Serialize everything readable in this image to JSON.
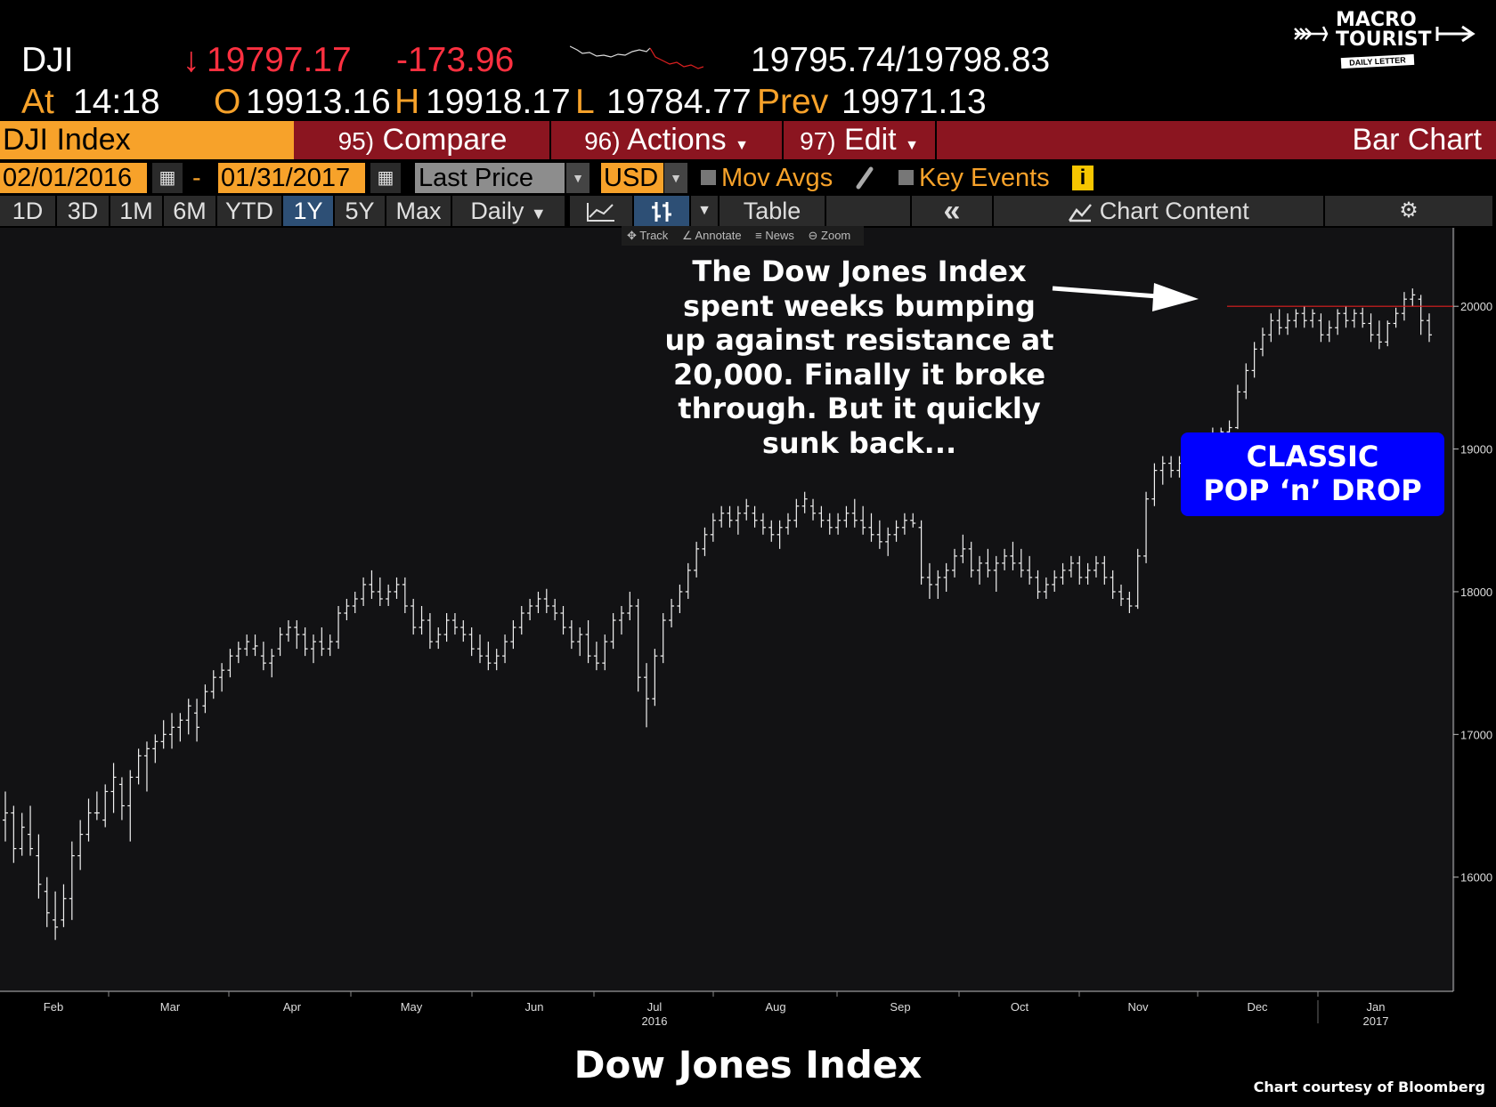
{
  "ticker": {
    "symbol": "DJI",
    "arrow": "↓",
    "last": "19797.17",
    "change": "-173.96",
    "bid_ask": "19795.74/19798.83",
    "at_label": "At",
    "time": "14:18",
    "open_label": "O",
    "open": "19913.16",
    "high_label": "H",
    "high": "19918.17",
    "low_label": "L",
    "low": "19784.77",
    "prev_label": "Prev",
    "prev": "19971.13"
  },
  "logo": {
    "line1": "Macro",
    "line2": "Tourist",
    "line3": "Daily Letter"
  },
  "menu": {
    "security": "DJI Index",
    "compare_num": "95)",
    "compare": "Compare",
    "actions_num": "96)",
    "actions": "Actions",
    "edit_num": "97)",
    "edit": "Edit",
    "chart_type": "Bar Chart"
  },
  "options": {
    "start_date": "02/01/2016",
    "date_sep": "-",
    "end_date": "01/31/2017",
    "field": "Last Price",
    "currency": "USD",
    "mov_avgs": "Mov Avgs",
    "key_events": "Key Events",
    "info": "i"
  },
  "timeframes": [
    "1D",
    "3D",
    "1M",
    "6M",
    "YTD",
    "1Y",
    "5Y",
    "Max"
  ],
  "active_timeframe": "1Y",
  "toolbar": {
    "periodicity": "Daily",
    "table": "Table",
    "collapse": "«",
    "chart_content": "Chart Content"
  },
  "mini_toolbar": {
    "track": "Track",
    "annotate": "Annotate",
    "news": "News",
    "zoom": "Zoom"
  },
  "annotations": {
    "callout": [
      "The Dow Jones Index",
      "spent weeks bumping",
      "up against resistance at",
      "20,000.  Finally it broke",
      "through.  But it quickly",
      "sunk back..."
    ],
    "badge": [
      "CLASSIC",
      "POP ‘n’ DROP"
    ]
  },
  "footer": {
    "title": "Dow Jones Index",
    "credit": "Chart courtesy of Bloomberg"
  },
  "colors": {
    "accent_orange": "#f7a22a",
    "down_red": "#ff3040",
    "menu_red": "#8b1520",
    "badge_blue": "#0000ff",
    "resistance_line": "#e02020"
  },
  "chart_data": {
    "type": "bar",
    "title": "",
    "xlabel": "",
    "ylabel": "",
    "ylim": [
      15200,
      20550
    ],
    "y_ticks": [
      16000,
      17000,
      18000,
      19000,
      20000
    ],
    "x_tick_labels": [
      "Feb",
      "Mar",
      "Apr",
      "May",
      "Jun",
      "Jul",
      "Aug",
      "Sep",
      "Oct",
      "Nov",
      "Dec",
      "Jan"
    ],
    "x_year_labels": [
      {
        "month": "Jul",
        "year": "2016"
      },
      {
        "month": "Jan",
        "year": "2017"
      }
    ],
    "resistance_level": 20000,
    "grid": false,
    "series": [
      {
        "values": [
          [
            16400,
            16600,
            16250,
            16450
          ],
          [
            16450,
            16500,
            16100,
            16200
          ],
          [
            16200,
            16450,
            16150,
            16350
          ],
          [
            16300,
            16500,
            16150,
            16200
          ],
          [
            16150,
            16300,
            15850,
            15950
          ],
          [
            15900,
            16000,
            15650,
            15750
          ],
          [
            15700,
            15900,
            15560,
            15650
          ],
          [
            15700,
            15950,
            15650,
            15850
          ],
          [
            15850,
            16250,
            15700,
            16150
          ],
          [
            16150,
            16400,
            16050,
            16300
          ],
          [
            16300,
            16550,
            16250,
            16450
          ],
          [
            16450,
            16600,
            16400,
            16450
          ],
          [
            16400,
            16650,
            16350,
            16600
          ],
          [
            16600,
            16800,
            16450,
            16700
          ],
          [
            16650,
            16700,
            16400,
            16500
          ],
          [
            16500,
            16750,
            16250,
            16700
          ],
          [
            16700,
            16900,
            16650,
            16850
          ],
          [
            16850,
            16950,
            16600,
            16900
          ],
          [
            16900,
            17000,
            16800,
            16950
          ],
          [
            16950,
            17100,
            16900,
            17000
          ],
          [
            17000,
            17150,
            16900,
            17050
          ],
          [
            17050,
            17150,
            16950,
            17100
          ],
          [
            17100,
            17250,
            17000,
            17200
          ],
          [
            17150,
            17250,
            16950,
            17050
          ],
          [
            17200,
            17350,
            17150,
            17300
          ],
          [
            17300,
            17450,
            17250,
            17400
          ],
          [
            17400,
            17500,
            17300,
            17450
          ],
          [
            17450,
            17600,
            17400,
            17550
          ],
          [
            17550,
            17650,
            17500,
            17600
          ],
          [
            17600,
            17700,
            17550,
            17650
          ],
          [
            17600,
            17700,
            17550,
            17620
          ],
          [
            17550,
            17650,
            17450,
            17500
          ],
          [
            17500,
            17600,
            17400,
            17550
          ],
          [
            17600,
            17750,
            17550,
            17700
          ],
          [
            17700,
            17800,
            17650,
            17750
          ],
          [
            17750,
            17800,
            17600,
            17700
          ],
          [
            17700,
            17750,
            17550,
            17600
          ],
          [
            17600,
            17700,
            17500,
            17650
          ],
          [
            17650,
            17750,
            17550,
            17600
          ],
          [
            17600,
            17700,
            17550,
            17650
          ],
          [
            17650,
            17900,
            17600,
            17850
          ],
          [
            17850,
            17950,
            17800,
            17900
          ],
          [
            17900,
            18000,
            17850,
            17950
          ],
          [
            17950,
            18100,
            17900,
            18050
          ],
          [
            18050,
            18150,
            17950,
            18000
          ],
          [
            18000,
            18100,
            17900,
            17950
          ],
          [
            17950,
            18050,
            17900,
            18000
          ],
          [
            18000,
            18100,
            17950,
            18050
          ],
          [
            18050,
            18100,
            17850,
            17900
          ],
          [
            17900,
            17950,
            17700,
            17750
          ],
          [
            17750,
            17900,
            17700,
            17800
          ],
          [
            17800,
            17850,
            17600,
            17650
          ],
          [
            17650,
            17750,
            17600,
            17700
          ],
          [
            17700,
            17850,
            17650,
            17800
          ],
          [
            17800,
            17850,
            17700,
            17750
          ],
          [
            17750,
            17800,
            17650,
            17700
          ],
          [
            17700,
            17750,
            17550,
            17600
          ],
          [
            17600,
            17700,
            17500,
            17550
          ],
          [
            17550,
            17650,
            17450,
            17500
          ],
          [
            17500,
            17600,
            17450,
            17550
          ],
          [
            17550,
            17700,
            17500,
            17650
          ],
          [
            17650,
            17800,
            17600,
            17750
          ],
          [
            17750,
            17900,
            17700,
            17850
          ],
          [
            17850,
            17950,
            17800,
            17900
          ],
          [
            17900,
            18000,
            17850,
            17950
          ],
          [
            17950,
            18020,
            17850,
            17900
          ],
          [
            17900,
            17950,
            17800,
            17850
          ],
          [
            17850,
            17900,
            17700,
            17750
          ],
          [
            17750,
            17800,
            17600,
            17650
          ],
          [
            17650,
            17750,
            17550,
            17700
          ],
          [
            17700,
            17800,
            17500,
            17550
          ],
          [
            17550,
            17650,
            17450,
            17500
          ],
          [
            17500,
            17700,
            17450,
            17650
          ],
          [
            17650,
            17850,
            17600,
            17800
          ],
          [
            17800,
            17900,
            17700,
            17850
          ],
          [
            17850,
            18000,
            17800,
            17900
          ],
          [
            17900,
            17950,
            17300,
            17400
          ],
          [
            17400,
            17500,
            17050,
            17250
          ],
          [
            17250,
            17600,
            17200,
            17550
          ],
          [
            17550,
            17850,
            17500,
            17800
          ],
          [
            17800,
            17950,
            17750,
            17900
          ],
          [
            17900,
            18050,
            17850,
            18000
          ],
          [
            18000,
            18200,
            17950,
            18150
          ],
          [
            18150,
            18350,
            18100,
            18300
          ],
          [
            18300,
            18450,
            18250,
            18400
          ],
          [
            18400,
            18550,
            18350,
            18500
          ],
          [
            18500,
            18600,
            18450,
            18550
          ],
          [
            18550,
            18600,
            18450,
            18500
          ],
          [
            18500,
            18600,
            18400,
            18550
          ],
          [
            18550,
            18650,
            18500,
            18600
          ],
          [
            18550,
            18600,
            18450,
            18500
          ],
          [
            18500,
            18550,
            18400,
            18450
          ],
          [
            18450,
            18500,
            18350,
            18400
          ],
          [
            18400,
            18500,
            18300,
            18450
          ],
          [
            18450,
            18550,
            18400,
            18500
          ],
          [
            18500,
            18650,
            18450,
            18600
          ],
          [
            18600,
            18700,
            18550,
            18650
          ],
          [
            18600,
            18650,
            18500,
            18550
          ],
          [
            18550,
            18600,
            18450,
            18500
          ],
          [
            18500,
            18550,
            18400,
            18450
          ],
          [
            18450,
            18550,
            18400,
            18500
          ],
          [
            18500,
            18600,
            18450,
            18550
          ],
          [
            18550,
            18650,
            18450,
            18500
          ],
          [
            18500,
            18600,
            18400,
            18450
          ],
          [
            18450,
            18550,
            18350,
            18400
          ],
          [
            18400,
            18500,
            18300,
            18350
          ],
          [
            18350,
            18450,
            18250,
            18400
          ],
          [
            18400,
            18500,
            18350,
            18450
          ],
          [
            18450,
            18550,
            18400,
            18500
          ],
          [
            18500,
            18550,
            18450,
            18480
          ],
          [
            18450,
            18500,
            18050,
            18100
          ],
          [
            18100,
            18200,
            17950,
            18050
          ],
          [
            18050,
            18150,
            17950,
            18100
          ],
          [
            18100,
            18200,
            18000,
            18150
          ],
          [
            18150,
            18300,
            18100,
            18250
          ],
          [
            18250,
            18400,
            18200,
            18300
          ],
          [
            18300,
            18350,
            18100,
            18150
          ],
          [
            18150,
            18250,
            18050,
            18200
          ],
          [
            18200,
            18300,
            18100,
            18150
          ],
          [
            18150,
            18250,
            18000,
            18200
          ],
          [
            18200,
            18300,
            18150,
            18250
          ],
          [
            18250,
            18350,
            18150,
            18200
          ],
          [
            18200,
            18300,
            18100,
            18150
          ],
          [
            18150,
            18250,
            18050,
            18100
          ],
          [
            18100,
            18150,
            17950,
            18000
          ],
          [
            18000,
            18100,
            17950,
            18050
          ],
          [
            18050,
            18150,
            18000,
            18100
          ],
          [
            18100,
            18200,
            18050,
            18150
          ],
          [
            18150,
            18250,
            18100,
            18200
          ],
          [
            18200,
            18250,
            18050,
            18100
          ],
          [
            18100,
            18200,
            18050,
            18150
          ],
          [
            18150,
            18250,
            18100,
            18200
          ],
          [
            18200,
            18250,
            18050,
            18100
          ],
          [
            18100,
            18150,
            17950,
            18000
          ],
          [
            18000,
            18050,
            17900,
            17950
          ],
          [
            17950,
            18000,
            17850,
            17900
          ],
          [
            17900,
            18300,
            17880,
            18250
          ],
          [
            18250,
            18700,
            18200,
            18650
          ],
          [
            18650,
            18900,
            18600,
            18850
          ],
          [
            18850,
            18950,
            18750,
            18900
          ],
          [
            18900,
            18950,
            18800,
            18850
          ],
          [
            18850,
            18950,
            18800,
            18900
          ],
          [
            18900,
            19000,
            18850,
            18950
          ],
          [
            18950,
            19050,
            18900,
            19000
          ],
          [
            19000,
            19100,
            18950,
            19050
          ],
          [
            19050,
            19150,
            19000,
            19100
          ],
          [
            19100,
            19150,
            19050,
            19120
          ],
          [
            19120,
            19200,
            19080,
            19150
          ],
          [
            19150,
            19450,
            19140,
            19400
          ],
          [
            19400,
            19600,
            19350,
            19550
          ],
          [
            19550,
            19750,
            19500,
            19700
          ],
          [
            19700,
            19850,
            19650,
            19800
          ],
          [
            19800,
            19950,
            19750,
            19900
          ],
          [
            19900,
            19980,
            19800,
            19850
          ],
          [
            19850,
            19950,
            19800,
            19900
          ],
          [
            19900,
            19980,
            19850,
            19950
          ],
          [
            19950,
            20000,
            19850,
            19900
          ],
          [
            19900,
            19980,
            19850,
            19950
          ],
          [
            19900,
            19950,
            19750,
            19800
          ],
          [
            19800,
            19900,
            19750,
            19850
          ],
          [
            19850,
            19980,
            19800,
            19950
          ],
          [
            19950,
            20000,
            19850,
            19900
          ],
          [
            19900,
            19980,
            19850,
            19950
          ],
          [
            19950,
            19990,
            19850,
            19880
          ],
          [
            19880,
            19950,
            19750,
            19800
          ],
          [
            19800,
            19900,
            19700,
            19750
          ],
          [
            19750,
            19900,
            19720,
            19880
          ],
          [
            19880,
            19990,
            19850,
            19950
          ],
          [
            19950,
            20100,
            19900,
            20050
          ],
          [
            20050,
            20125,
            20000,
            20080
          ],
          [
            20050,
            20080,
            19800,
            19900
          ],
          [
            19900,
            19950,
            19750,
            19800
          ]
        ]
      }
    ]
  }
}
